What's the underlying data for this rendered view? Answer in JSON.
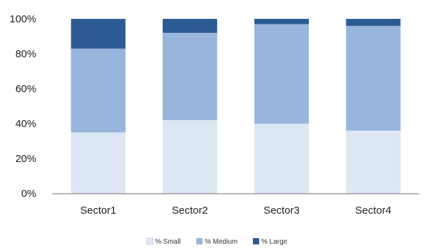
{
  "chart_data": {
    "type": "bar",
    "stacked": true,
    "categories": [
      "Sector1",
      "Sector2",
      "Sector3",
      "Sector4"
    ],
    "series": [
      {
        "name": "% Small",
        "values": [
          35,
          42,
          40,
          36
        ],
        "color": "#dde6f3"
      },
      {
        "name": "% Medium",
        "values": [
          48,
          50,
          57,
          60
        ],
        "color": "#98b5dc"
      },
      {
        "name": "% Large",
        "values": [
          17,
          8,
          3,
          4
        ],
        "color": "#2d5a93"
      }
    ],
    "ylim": [
      0,
      100
    ],
    "yticks": [
      "0%",
      "20%",
      "40%",
      "60%",
      "80%",
      "100%"
    ],
    "grid": false,
    "legend_position": "bottom"
  }
}
